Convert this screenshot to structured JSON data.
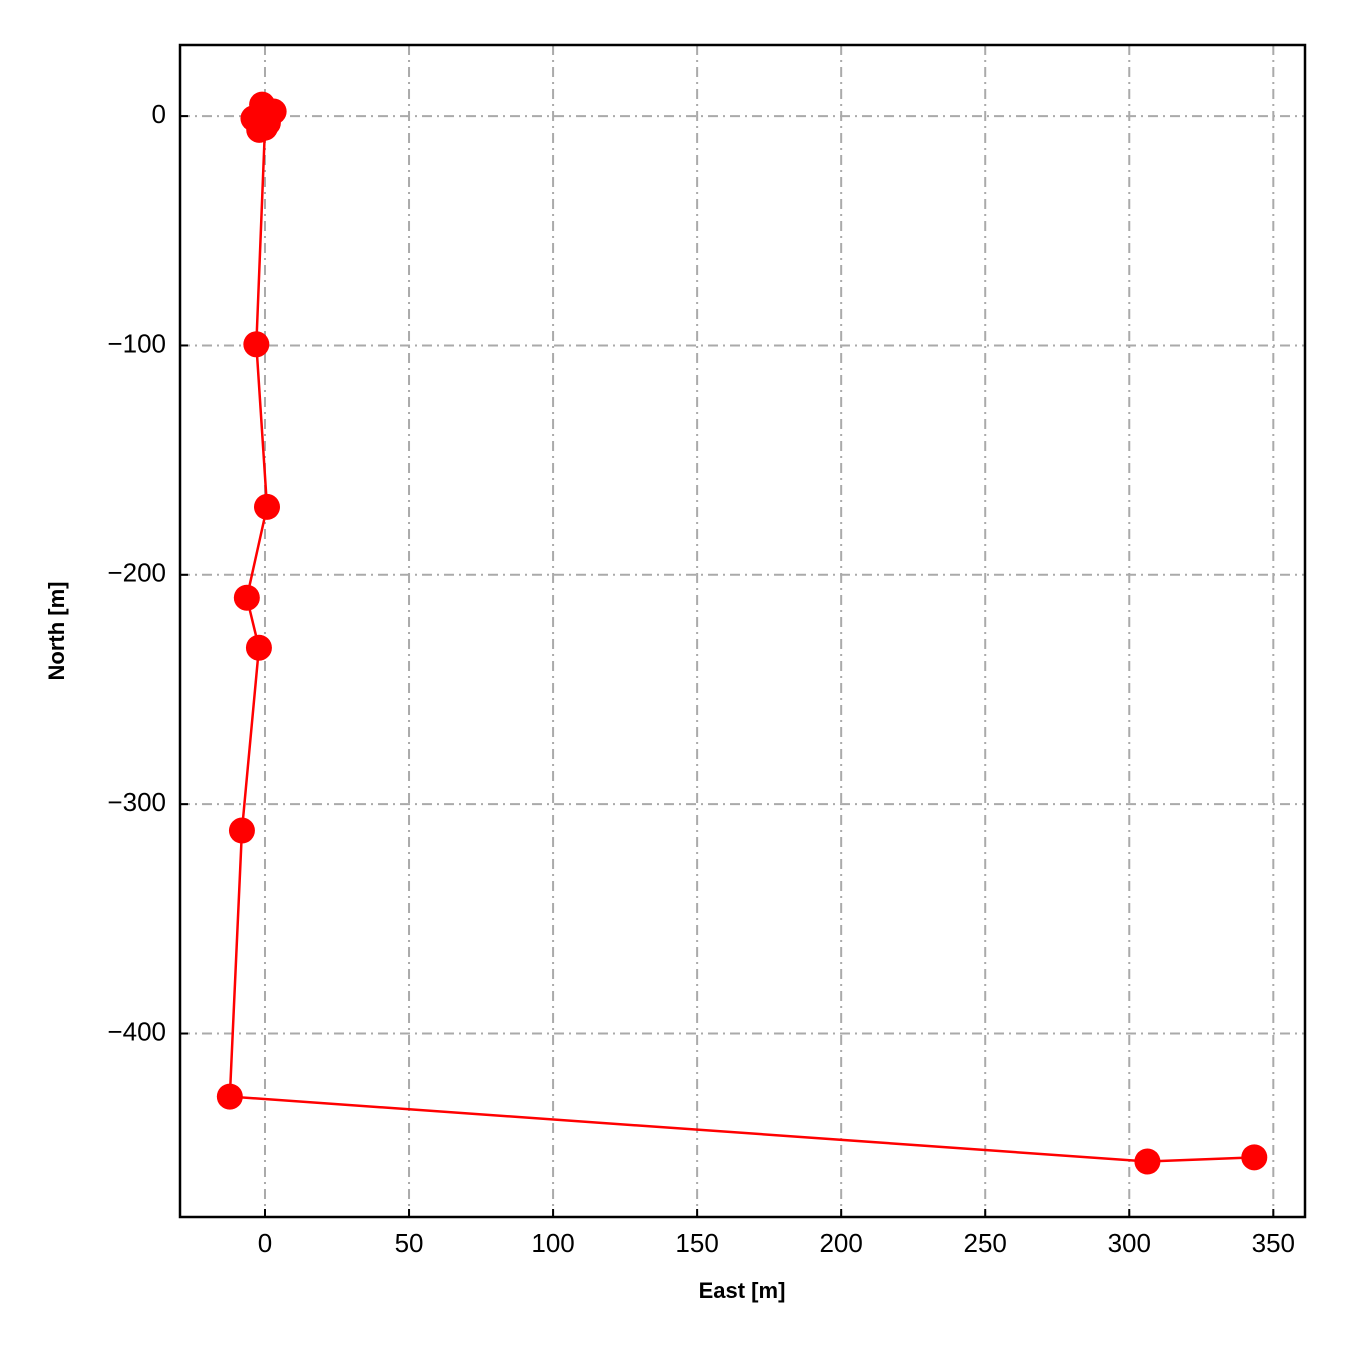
{
  "chart_data": {
    "type": "line",
    "xlabel": "East [m]",
    "ylabel": "North [m]",
    "x": [
      -1,
      3,
      -4,
      -2,
      1,
      0,
      -3,
      0.7,
      -6.3,
      -2.1,
      -8,
      -12.2,
      306.3,
      343.4
    ],
    "series": [
      {
        "color": "#ff0000",
        "values": [
          5,
          2,
          -1,
          -6,
          -3,
          -5,
          -99.5,
          -170.4,
          -210,
          -231.8,
          -311.5,
          -427.5,
          -455.8,
          -454
        ]
      }
    ],
    "xlim": [
      -29.5,
      361
    ],
    "ylim": [
      -480,
      31
    ],
    "xticks": [
      0,
      50,
      100,
      150,
      200,
      250,
      300,
      350
    ],
    "yticks": [
      {
        "value": -400,
        "label": "−400"
      },
      {
        "value": -300,
        "label": "−300"
      },
      {
        "value": -200,
        "label": "−200"
      },
      {
        "value": -100,
        "label": "−100"
      },
      0
    ],
    "grid": true
  }
}
